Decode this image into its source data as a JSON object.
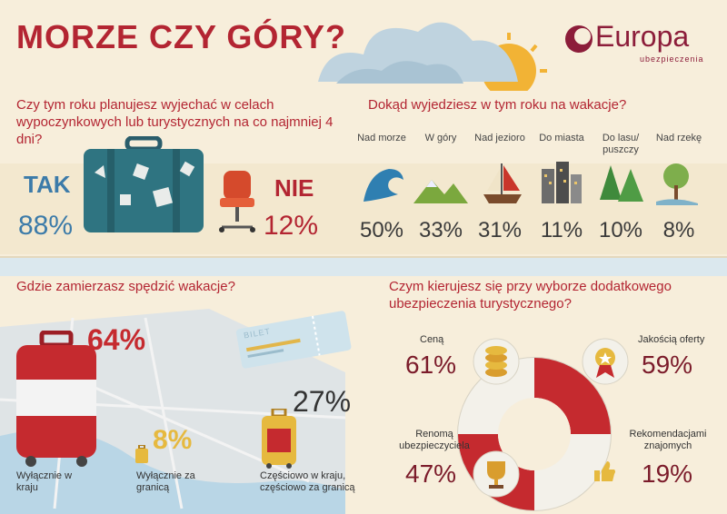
{
  "title": "MORZE CZY GÓRY?",
  "logo": {
    "brand": "Europa",
    "tagline": "ubezpieczenia"
  },
  "q1": {
    "question": "Czy  tym roku planujesz wyjechać w celach wypoczynkowych lub turystycznych na co najmniej 4 dni?",
    "yes_label": "TAK",
    "yes_pct": "88%",
    "no_label": "NIE",
    "no_pct": "12%"
  },
  "q2": {
    "question": "Dokąd wyjedziesz w tym roku na wakacje?",
    "items": [
      {
        "label": "Nad morze",
        "pct": "50%",
        "icon": "wave-icon"
      },
      {
        "label": "W góry",
        "pct": "33%",
        "icon": "mountain-icon"
      },
      {
        "label": "Nad jezioro",
        "pct": "31%",
        "icon": "sailboat-icon"
      },
      {
        "label": "Do miasta",
        "pct": "11%",
        "icon": "city-icon"
      },
      {
        "label": "Do lasu/ puszczy",
        "pct": "10%",
        "icon": "forest-icon"
      },
      {
        "label": "Nad rzekę",
        "pct": "8%",
        "icon": "tree-river-icon"
      }
    ]
  },
  "q3": {
    "question": "Gdzie zamierzasz spędzić wakacje?",
    "ticket_text": "BILET",
    "items": [
      {
        "label": "Wyłącznie w kraju",
        "pct": "64%"
      },
      {
        "label": "Wyłącznie za granicą",
        "pct": "8%"
      },
      {
        "label": "Częściowo w kraju, częściowo za granicą",
        "pct": "27%"
      }
    ]
  },
  "q4": {
    "question": "Czym kierujesz się przy wyborze dodatkowego ubezpieczenia turystycznego?",
    "items": [
      {
        "label": "Ceną",
        "pct": "61%",
        "icon": "coins-icon"
      },
      {
        "label": "Jakością oferty",
        "pct": "59%",
        "icon": "medal-icon"
      },
      {
        "label": "Renomą ubezpieczyciela",
        "pct": "47%",
        "icon": "trophy-icon"
      },
      {
        "label": "Rekomendacjami znajomych",
        "pct": "19%",
        "icon": "thumbs-up-icon"
      }
    ]
  },
  "colors": {
    "accent": "#b32532",
    "blue": "#3c7ba9",
    "teal": "#2e6c78",
    "text": "#333333"
  }
}
